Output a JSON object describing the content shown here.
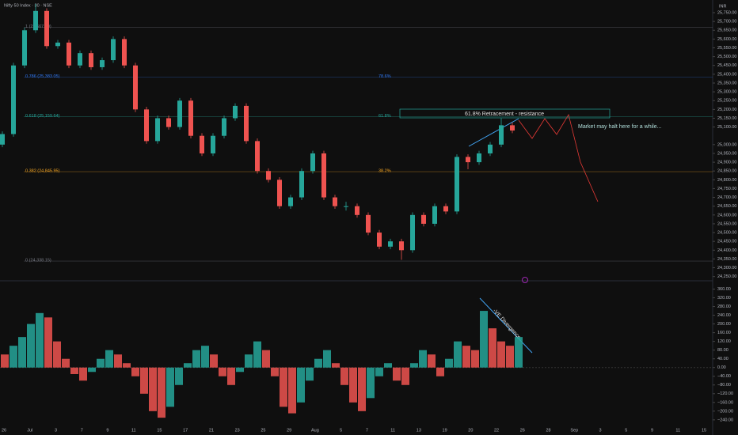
{
  "header": {
    "symbol": "Nifty 50 Index · 30 · NSE",
    "currency": "INR"
  },
  "chart_data": {
    "type": "candlestick",
    "up_color": "#26a69a",
    "down_color": "#ef5350",
    "ylim": [
      24226,
      25822
    ],
    "yticks": [
      {
        "value": 25750,
        "label": "25,750.00"
      },
      {
        "value": 25700,
        "label": "25,700.00"
      },
      {
        "value": 25650,
        "label": "25,650.00"
      },
      {
        "value": 25600,
        "label": "25,600.00"
      },
      {
        "value": 25550,
        "label": "25,550.00"
      },
      {
        "value": 25500,
        "label": "25,500.00"
      },
      {
        "value": 25450,
        "label": "25,450.00"
      },
      {
        "value": 25400,
        "label": "25,400.00"
      },
      {
        "value": 25350,
        "label": "25,350.00"
      },
      {
        "value": 25300,
        "label": "25,300.00"
      },
      {
        "value": 25250,
        "label": "25,250.00"
      },
      {
        "value": 25200,
        "label": "25,200.00"
      },
      {
        "value": 25150,
        "label": "25,150.00"
      },
      {
        "value": 25100,
        "label": "25,100.00"
      },
      {
        "value": 25000,
        "label": "25,000.00"
      },
      {
        "value": 24950,
        "label": "24,950.00"
      },
      {
        "value": 24900,
        "label": "24,900.00"
      },
      {
        "value": 24850,
        "label": "24,850.00"
      },
      {
        "value": 24800,
        "label": "24,800.00"
      },
      {
        "value": 24750,
        "label": "24,750.00"
      },
      {
        "value": 24700,
        "label": "24,700.00"
      },
      {
        "value": 24650,
        "label": "24,650.00"
      },
      {
        "value": 24600,
        "label": "24,600.00"
      },
      {
        "value": 24550,
        "label": "24,550.00"
      },
      {
        "value": 24500,
        "label": "24,500.00"
      },
      {
        "value": 24450,
        "label": "24,450.00"
      },
      {
        "value": 24400,
        "label": "24,400.00"
      },
      {
        "value": 24350,
        "label": "24,350.00"
      },
      {
        "value": 24300,
        "label": "24,300.00"
      },
      {
        "value": 24250,
        "label": "24,250.00"
      }
    ],
    "categories": [
      "26",
      "Jul",
      "3",
      "7",
      "9",
      "11",
      "15",
      "17",
      "21",
      "23",
      "25",
      "29",
      "Aug",
      "5",
      "7",
      "11",
      "13",
      "19",
      "20",
      "22",
      "26",
      "28",
      "Sep",
      "3",
      "5",
      "9",
      "11",
      "15"
    ],
    "candles": [
      {
        "open": 25000,
        "high": 25075,
        "low": 24985,
        "close": 25060
      },
      {
        "open": 25060,
        "high": 25465,
        "low": 25045,
        "close": 25450
      },
      {
        "open": 25450,
        "high": 25665,
        "low": 25435,
        "close": 25650
      },
      {
        "open": 25650,
        "high": 25800,
        "low": 25635,
        "close": 25760
      },
      {
        "open": 25760,
        "high": 25775,
        "low": 25545,
        "close": 25560
      },
      {
        "open": 25560,
        "high": 25595,
        "low": 25545,
        "close": 25580
      },
      {
        "open": 25580,
        "high": 25595,
        "low": 25435,
        "close": 25450
      },
      {
        "open": 25450,
        "high": 25535,
        "low": 25435,
        "close": 25520
      },
      {
        "open": 25520,
        "high": 25535,
        "low": 25425,
        "close": 25440
      },
      {
        "open": 25440,
        "high": 25495,
        "low": 25425,
        "close": 25480
      },
      {
        "open": 25480,
        "high": 25615,
        "low": 25465,
        "close": 25600
      },
      {
        "open": 25600,
        "high": 25615,
        "low": 25435,
        "close": 25450
      },
      {
        "open": 25450,
        "high": 25465,
        "low": 25185,
        "close": 25200
      },
      {
        "open": 25200,
        "high": 25215,
        "low": 25005,
        "close": 25020
      },
      {
        "open": 25020,
        "high": 25165,
        "low": 25005,
        "close": 25150
      },
      {
        "open": 25150,
        "high": 25165,
        "low": 25085,
        "close": 25100
      },
      {
        "open": 25100,
        "high": 25265,
        "low": 25085,
        "close": 25250
      },
      {
        "open": 25250,
        "high": 25265,
        "low": 25035,
        "close": 25050
      },
      {
        "open": 25050,
        "high": 25065,
        "low": 24935,
        "close": 24950
      },
      {
        "open": 24950,
        "high": 25065,
        "low": 24935,
        "close": 25050
      },
      {
        "open": 25050,
        "high": 25165,
        "low": 25035,
        "close": 25150
      },
      {
        "open": 25150,
        "high": 25235,
        "low": 25135,
        "close": 25220
      },
      {
        "open": 25220,
        "high": 25235,
        "low": 25005,
        "close": 25020
      },
      {
        "open": 25020,
        "high": 25035,
        "low": 24835,
        "close": 24850
      },
      {
        "open": 24850,
        "high": 24865,
        "low": 24785,
        "close": 24800
      },
      {
        "open": 24800,
        "high": 24815,
        "low": 24635,
        "close": 24650
      },
      {
        "open": 24650,
        "high": 24715,
        "low": 24635,
        "close": 24700
      },
      {
        "open": 24700,
        "high": 24865,
        "low": 24685,
        "close": 24850
      },
      {
        "open": 24850,
        "high": 24965,
        "low": 24835,
        "close": 24950
      },
      {
        "open": 24950,
        "high": 24965,
        "low": 24685,
        "close": 24700
      },
      {
        "open": 24700,
        "high": 24715,
        "low": 24635,
        "close": 24650
      },
      {
        "open": 24650,
        "high": 24675,
        "low": 24625,
        "close": 24650
      },
      {
        "open": 24650,
        "high": 24665,
        "low": 24585,
        "close": 24600
      },
      {
        "open": 24600,
        "high": 24615,
        "low": 24485,
        "close": 24500
      },
      {
        "open": 24500,
        "high": 24515,
        "low": 24405,
        "close": 24420
      },
      {
        "open": 24420,
        "high": 24465,
        "low": 24405,
        "close": 24450
      },
      {
        "open": 24450,
        "high": 24465,
        "low": 24345,
        "close": 24400
      },
      {
        "open": 24400,
        "high": 24615,
        "low": 24385,
        "close": 24600
      },
      {
        "open": 24600,
        "high": 24615,
        "low": 24535,
        "close": 24550
      },
      {
        "open": 24550,
        "high": 24665,
        "low": 24535,
        "close": 24650
      },
      {
        "open": 24650,
        "high": 24665,
        "low": 24605,
        "close": 24620
      },
      {
        "open": 24620,
        "high": 24945,
        "low": 24605,
        "close": 24930
      },
      {
        "open": 24930,
        "high": 24945,
        "low": 24860,
        "close": 24900
      },
      {
        "open": 24900,
        "high": 24965,
        "low": 24885,
        "close": 24950
      },
      {
        "open": 24950,
        "high": 25015,
        "low": 24935,
        "close": 25000
      },
      {
        "open": 25000,
        "high": 25150,
        "low": 24985,
        "close": 25110
      },
      {
        "open": 25110,
        "high": 25125,
        "low": 25065,
        "close": 25080
      }
    ],
    "fib_levels": [
      {
        "price": 25667.4,
        "label": "1 (25,667.40)",
        "color": "#787b86"
      },
      {
        "price": 25383.05,
        "label": "0.786 (25,383.05)",
        "pct": "78.6%",
        "color": "#3179f5"
      },
      {
        "price": 25159.64,
        "label": "0.618 (25,159.64)",
        "pct": "61.8%",
        "color": "#26a69a"
      },
      {
        "price": 24845.95,
        "label": "0.382 (24,845.95)",
        "pct": "38.2%",
        "color": "#f5a623"
      },
      {
        "price": 24338.15,
        "label": "0 (24,338.15)",
        "color": "#787b86"
      }
    ],
    "annotations": {
      "resistance": "61.8% Retracement -  resistance",
      "halt": "Market may halt here for a while...",
      "divergence": "-VE Divergence"
    },
    "oscillator": {
      "type": "histogram",
      "ylim": [
        -255,
        380
      ],
      "yticks": [
        {
          "value": 360,
          "label": "360.00"
        },
        {
          "value": 320,
          "label": "320.00"
        },
        {
          "value": 280,
          "label": "280.00"
        },
        {
          "value": 240,
          "label": "240.00"
        },
        {
          "value": 200,
          "label": "200.00"
        },
        {
          "value": 160,
          "label": "160.00"
        },
        {
          "value": 120,
          "label": "120.00"
        },
        {
          "value": 80,
          "label": "80.00"
        },
        {
          "value": 40,
          "label": "40.00"
        },
        {
          "value": 0,
          "label": "0.00"
        },
        {
          "value": -40,
          "label": "−40.00"
        },
        {
          "value": -80,
          "label": "−80.00"
        },
        {
          "value": -120,
          "label": "−120.00"
        },
        {
          "value": -160,
          "label": "−160.00"
        },
        {
          "value": -200,
          "label": "−200.00"
        },
        {
          "value": -240,
          "label": "−240.00"
        }
      ],
      "values": [
        60,
        100,
        140,
        200,
        250,
        230,
        120,
        40,
        -30,
        -60,
        -20,
        40,
        80,
        60,
        20,
        -40,
        -120,
        -200,
        -230,
        -180,
        -80,
        20,
        80,
        100,
        60,
        -40,
        -80,
        -20,
        60,
        120,
        80,
        -40,
        -180,
        -210,
        -160,
        -60,
        40,
        80,
        20,
        -80,
        -160,
        -200,
        -140,
        -40,
        20,
        -60,
        -80,
        20,
        80,
        60,
        -40,
        40,
        120,
        100,
        80,
        260,
        180,
        120,
        100,
        140
      ]
    }
  }
}
